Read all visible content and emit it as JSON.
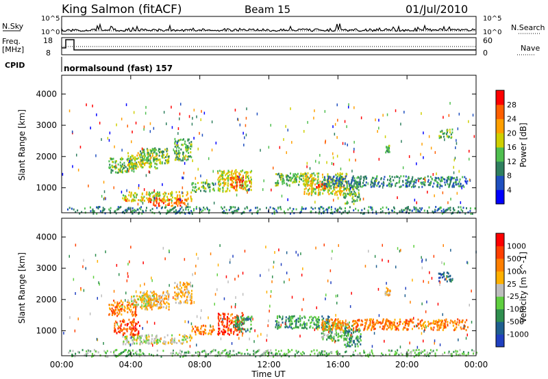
{
  "header": {
    "station": "King Salmon (fitACF)",
    "beam": "Beam 15",
    "date": "01/Jul/2010"
  },
  "top_panels": {
    "nsky_label": "N.Sky",
    "nsearch_label": "N.Search",
    "nsky_ticks": [
      "10^5",
      "10^0"
    ],
    "nsearch_ticks": [
      "10^5",
      "10^0"
    ],
    "freq_label_1": "Freq.",
    "freq_label_2": "[MHz]",
    "freq_ticks": [
      "18",
      "8"
    ],
    "nave_label": "Nave",
    "nave_ticks": [
      "60",
      "0"
    ],
    "cpid_label": "CPID",
    "cpid_value": "normalsound (fast) 157"
  },
  "chart_data": [
    {
      "type": "heatmap",
      "name": "power",
      "title": "",
      "xlabel": "Time UT",
      "ylabel": "Slant Range [km]",
      "x_ticks": [
        "00:00",
        "04:00",
        "08:00",
        "12:00",
        "16:00",
        "20:00",
        "00:00"
      ],
      "y_ticks": [
        4000,
        3000,
        2000,
        1000
      ],
      "ylim": [
        200,
        4600
      ],
      "xlim_hours": [
        0,
        24
      ],
      "colorbar": {
        "label": "Power [dB]",
        "ticks": [
          "28",
          "24",
          "20",
          "16",
          "12",
          "8",
          "4"
        ],
        "colors": [
          "#0000ff",
          "#1f4fbf",
          "#2f7f5f",
          "#4fbf4f",
          "#cfcf00",
          "#ff9f00",
          "#ff5f00",
          "#ff0000"
        ]
      },
      "regions": [
        {
          "t": [
            2.7,
            4.3
          ],
          "r": [
            1500,
            2000
          ],
          "level": 3
        },
        {
          "t": [
            3.8,
            5.5
          ],
          "r": [
            1650,
            2150
          ],
          "level": 4
        },
        {
          "t": [
            4.5,
            6.2
          ],
          "r": [
            1800,
            2300
          ],
          "level": 3
        },
        {
          "t": [
            6.5,
            7.5
          ],
          "r": [
            1900,
            2600
          ],
          "level": 3
        },
        {
          "t": [
            3.5,
            7.5
          ],
          "r": [
            600,
            900
          ],
          "level": 4
        },
        {
          "t": [
            5.0,
            7.2
          ],
          "r": [
            450,
            700
          ],
          "level": 6
        },
        {
          "t": [
            7.5,
            8.8
          ],
          "r": [
            900,
            1200
          ],
          "level": 3
        },
        {
          "t": [
            9.0,
            11.0
          ],
          "r": [
            900,
            1600
          ],
          "level": 4
        },
        {
          "t": [
            9.7,
            10.5
          ],
          "r": [
            1000,
            1400
          ],
          "level": 6
        },
        {
          "t": [
            12.3,
            14.5
          ],
          "r": [
            1100,
            1500
          ],
          "level": 3
        },
        {
          "t": [
            14.0,
            16.5
          ],
          "r": [
            800,
            1500
          ],
          "level": 4
        },
        {
          "t": [
            14.7,
            15.3
          ],
          "r": [
            1000,
            1200
          ],
          "level": 6
        },
        {
          "t": [
            16.3,
            17.3
          ],
          "r": [
            500,
            1100
          ],
          "level": 3
        },
        {
          "t": [
            15.0,
            23.5
          ],
          "r": [
            1050,
            1400
          ],
          "level": 2
        },
        {
          "t": [
            18.7,
            19.0
          ],
          "r": [
            2150,
            2400
          ],
          "level": 3
        },
        {
          "t": [
            21.8,
            22.6
          ],
          "r": [
            2600,
            2900
          ],
          "level": 3
        },
        {
          "t": [
            0.3,
            24.0
          ],
          "r": [
            200,
            420
          ],
          "level": 2
        }
      ]
    },
    {
      "type": "heatmap",
      "name": "velocity",
      "title": "",
      "xlabel": "Time UT",
      "ylabel": "Slant Range [km]",
      "x_ticks": [
        "00:00",
        "04:00",
        "08:00",
        "12:00",
        "16:00",
        "20:00",
        "00:00"
      ],
      "y_ticks": [
        4000,
        3000,
        2000,
        1000
      ],
      "ylim": [
        200,
        4600
      ],
      "xlim_hours": [
        0,
        24
      ],
      "colorbar": {
        "label": "Velocity [m s^-1]",
        "ticks": [
          "1000",
          "500",
          "100",
          "25",
          "-25",
          "-100",
          "-500",
          "-1000"
        ],
        "colors": [
          "#2040c0",
          "#1f5f8f",
          "#2f8f4f",
          "#5fcf3f",
          "#bebebe",
          "#ffb000",
          "#ff7f00",
          "#ff3f00",
          "#ff0000"
        ]
      },
      "regions": [
        {
          "t": [
            2.7,
            4.3
          ],
          "r": [
            1500,
            2000
          ],
          "level": 6
        },
        {
          "t": [
            3.8,
            5.5
          ],
          "r": [
            1800,
            2150
          ],
          "level": 4
        },
        {
          "t": [
            4.5,
            6.2
          ],
          "r": [
            1700,
            2300
          ],
          "level": 5
        },
        {
          "t": [
            6.5,
            7.5
          ],
          "r": [
            1900,
            2600
          ],
          "level": 5
        },
        {
          "t": [
            3.5,
            7.5
          ],
          "r": [
            600,
            900
          ],
          "level": 4
        },
        {
          "t": [
            3.0,
            4.5
          ],
          "r": [
            900,
            1400
          ],
          "level": 7
        },
        {
          "t": [
            7.5,
            8.8
          ],
          "r": [
            900,
            1200
          ],
          "level": 6
        },
        {
          "t": [
            9.0,
            10.5
          ],
          "r": [
            900,
            1600
          ],
          "level": 7
        },
        {
          "t": [
            10.0,
            11.0
          ],
          "r": [
            1000,
            1500
          ],
          "level": 2
        },
        {
          "t": [
            12.3,
            15.5
          ],
          "r": [
            1100,
            1500
          ],
          "level": 2
        },
        {
          "t": [
            15.0,
            16.8
          ],
          "r": [
            700,
            1300
          ],
          "level": 3
        },
        {
          "t": [
            16.3,
            17.3
          ],
          "r": [
            500,
            1100
          ],
          "level": 2
        },
        {
          "t": [
            15.0,
            23.5
          ],
          "r": [
            1050,
            1400
          ],
          "level": 6
        },
        {
          "t": [
            18.7,
            19.0
          ],
          "r": [
            2150,
            2400
          ],
          "level": 5
        },
        {
          "t": [
            21.8,
            22.6
          ],
          "r": [
            2600,
            2900
          ],
          "level": 1
        },
        {
          "t": [
            0.3,
            24.0
          ],
          "r": [
            200,
            420
          ],
          "level": 3
        }
      ]
    }
  ]
}
